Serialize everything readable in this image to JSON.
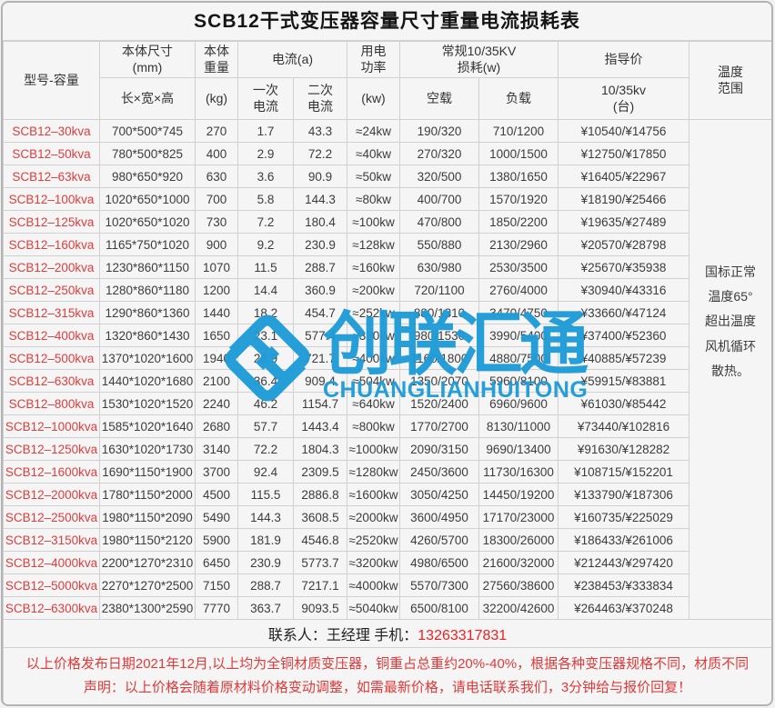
{
  "title": "SCB12干式变压器容量尺寸重量电流损耗表",
  "header": {
    "model": "型号-容量",
    "size_top": "本体尺寸\n(mm)",
    "size_sub": "长×宽×高",
    "weight_top": "本体\n重量",
    "weight_sub": "(kg)",
    "current_top": "电流(a)",
    "current_primary": "一次\n电流",
    "current_secondary": "二次\n电流",
    "power_top": "用电\n功率",
    "power_sub": "(kw)",
    "loss_top": "常规10/35KV\n损耗(w)",
    "loss_noload": "空载",
    "loss_load": "负载",
    "price_top": "指导价",
    "price_sub": "10/35kv\n(台)",
    "temp": "温度\n范围"
  },
  "temp_note": "国标正常\n温度65°\n超出温度\n风机循环\n散热。",
  "chart_data": {
    "type": "table",
    "title": "SCB12干式变压器容量尺寸重量电流损耗表",
    "columns": [
      "型号-容量",
      "本体尺寸(mm) 长×宽×高",
      "本体重量(kg)",
      "一次电流(a)",
      "二次电流(a)",
      "用电功率(kw)",
      "常规10/35KV损耗(w) 空载",
      "常规10/35KV损耗(w) 负载",
      "指导价 10/35kv(台)"
    ],
    "rows": [
      [
        "SCB12–30kva",
        "700*500*745",
        "270",
        "1.7",
        "43.3",
        "≈24kw",
        "190/320",
        "710/1200",
        "¥10540/¥14756"
      ],
      [
        "SCB12–50kva",
        "780*500*825",
        "400",
        "2.9",
        "72.2",
        "≈40kw",
        "270/320",
        "1000/1500",
        "¥12750/¥17850"
      ],
      [
        "SCB12–63kva",
        "980*650*920",
        "630",
        "3.6",
        "90.9",
        "≈50kw",
        "320/500",
        "1380/1650",
        "¥16405/¥22967"
      ],
      [
        "SCB12–100kva",
        "1020*650*1000",
        "700",
        "5.8",
        "144.3",
        "≈80kw",
        "400/700",
        "1570/1920",
        "¥18190/¥25466"
      ],
      [
        "SCB12–125kva",
        "1020*650*1020",
        "730",
        "7.2",
        "180.4",
        "≈100kw",
        "470/800",
        "1850/2200",
        "¥19635/¥27489"
      ],
      [
        "SCB12–160kva",
        "1165*750*1020",
        "900",
        "9.2",
        "230.9",
        "≈128kw",
        "550/880",
        "2130/2960",
        "¥20570/¥28798"
      ],
      [
        "SCB12–200kva",
        "1230*860*1150",
        "1070",
        "11.5",
        "288.7",
        "≈160kw",
        "630/980",
        "2530/3500",
        "¥25670/¥35938"
      ],
      [
        "SCB12–250kva",
        "1280*860*1180",
        "1200",
        "14.4",
        "360.9",
        "≈200kw",
        "720/1100",
        "2760/4000",
        "¥30940/¥43316"
      ],
      [
        "SCB12–315kva",
        "1290*860*1360",
        "1440",
        "18.2",
        "454.7",
        "≈252kw",
        "880/1310",
        "3470/4750",
        "¥33660/¥47124"
      ],
      [
        "SCB12–400kva",
        "1320*860*1430",
        "1650",
        "23.1",
        "577.4",
        "≈320kw",
        "980/1530",
        "3990/5400",
        "¥37400/¥52360"
      ],
      [
        "SCB12–500kva",
        "1370*1020*1600",
        "1940",
        "28.9",
        "721.7",
        "≈400kw",
        "1160/1800",
        "4880/7500",
        "¥40885/¥57239"
      ],
      [
        "SCB12–630kva",
        "1440*1020*1680",
        "2100",
        "36.4",
        "909.4",
        "≈504kw",
        "1350/2070",
        "5960/8100",
        "¥59915/¥83881"
      ],
      [
        "SCB12–800kva",
        "1530*1020*1520",
        "2240",
        "46.2",
        "1154.7",
        "≈640kw",
        "1520/2400",
        "6960/9600",
        "¥61030/¥85442"
      ],
      [
        "SCB12–1000kva",
        "1585*1020*1640",
        "2680",
        "57.7",
        "1443.4",
        "≈800kw",
        "1770/2700",
        "8130/11000",
        "¥73440/¥102816"
      ],
      [
        "SCB12–1250kva",
        "1630*1020*1730",
        "3140",
        "72.2",
        "1804.3",
        "≈1000kw",
        "2090/3150",
        "9690/13400",
        "¥91630/¥128282"
      ],
      [
        "SCB12–1600kva",
        "1690*1150*1900",
        "3700",
        "92.4",
        "2309.5",
        "≈1280kw",
        "2450/3600",
        "11730/16300",
        "¥108715/¥152201"
      ],
      [
        "SCB12–2000kva",
        "1780*1150*2000",
        "4500",
        "115.5",
        "2886.8",
        "≈1600kw",
        "3050/4250",
        "14450/19200",
        "¥133790/¥187306"
      ],
      [
        "SCB12–2500kva",
        "1980*1150*2090",
        "5490",
        "144.3",
        "3608.5",
        "≈2000kw",
        "3600/4950",
        "17170/23000",
        "¥160735/¥225029"
      ],
      [
        "SCB12–3150kva",
        "1980*1150*2120",
        "5900",
        "181.9",
        "4546.8",
        "≈2520kw",
        "4260/5700",
        "18300/26000",
        "¥186433/¥261006"
      ],
      [
        "SCB12–4000kva",
        "2200*1270*2310",
        "6450",
        "230.9",
        "5773.7",
        "≈3200kw",
        "4980/6500",
        "21600/32000",
        "¥212443/¥297420"
      ],
      [
        "SCB12–5000kva",
        "2270*1270*2500",
        "7150",
        "288.7",
        "7217.1",
        "≈4000kw",
        "5570/7300",
        "27560/38600",
        "¥238453/¥333834"
      ],
      [
        "SCB12–6300kva",
        "2380*1300*2590",
        "7770",
        "363.7",
        "9093.5",
        "≈5040kw",
        "6500/8100",
        "32200/42600",
        "¥264463/¥370248"
      ]
    ]
  },
  "contact": {
    "label": "联系人：王经理 手机：",
    "phone": "13263317831"
  },
  "notices": [
    "以上价格发布日期2021年12月,以上均为全铜材质变压器，铜重占总重约20%-40%，根据各种变压器规格不同，材质不同",
    "声明：以上价格会随着原材料价格变动调整，如需最新价格，请电话联系我们，3分钟给与报价回复！"
  ],
  "logo": {
    "text": "创联汇通",
    "subtext": "CHUANGLIANHUITONG"
  },
  "colors": {
    "model_red": "#e03d3d",
    "phone_red": "#ef2020",
    "notice_red": "#e03a3a",
    "logo_blue": "#1e9bd7"
  }
}
